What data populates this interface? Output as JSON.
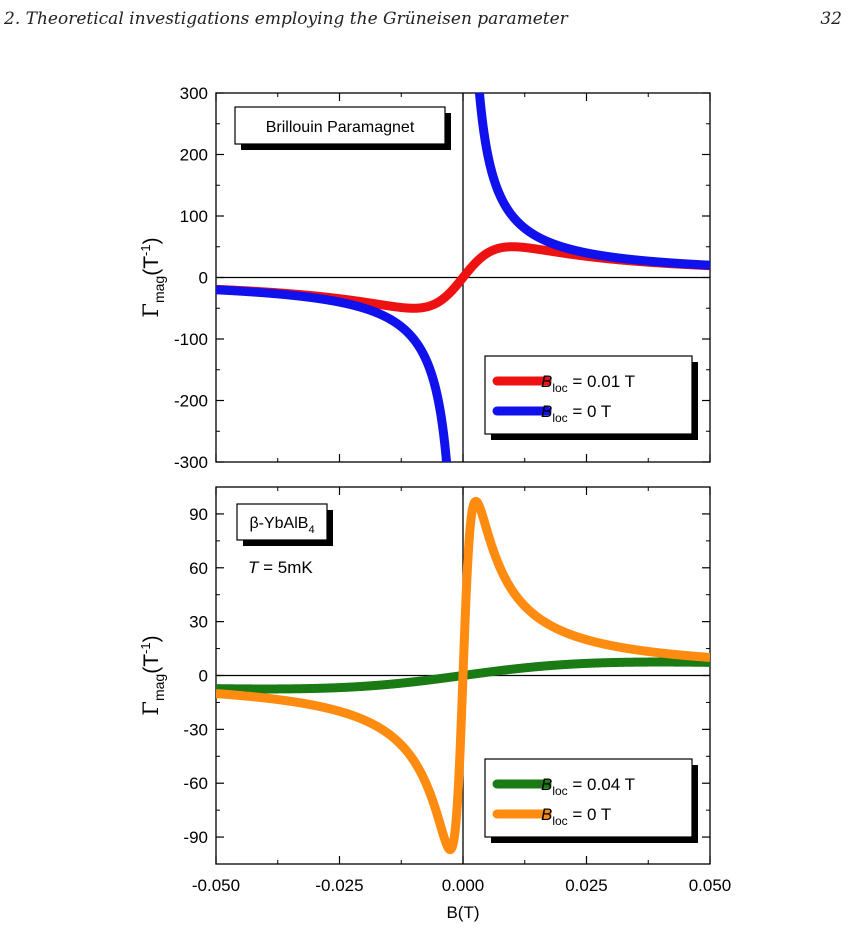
{
  "header": {
    "title": "2. Theoretical investigations employing the Grüneisen parameter",
    "page_number": "32"
  },
  "chart_data": [
    {
      "type": "line",
      "title": "Brillouin Paramagnet",
      "xlabel": "B(T)",
      "ylabel": {
        "symbol": "Γ",
        "sub": "mag",
        "unit": "(T",
        "sup": "-1",
        "close": ")"
      },
      "xlim": [
        -0.05,
        0.05
      ],
      "ylim": [
        -300,
        300
      ],
      "yticks": [
        -300,
        -200,
        -100,
        0,
        100,
        200,
        300
      ],
      "ytick_labels": [
        "-300",
        "-200",
        "-100",
        "0",
        "100",
        "200",
        "300"
      ],
      "legend_position": "bottom-right",
      "series": [
        {
          "name": "B_loc = 0.01 T",
          "label_main": "B",
          "label_sub": "loc",
          "label_tail": " = 0.01 T",
          "color": "#ee1111",
          "b_loc": 0.01
        },
        {
          "name": "B_loc = 0 T",
          "label_main": "B",
          "label_sub": "loc",
          "label_tail": " = 0 T",
          "color": "#1111ee",
          "b_loc": 0
        }
      ]
    },
    {
      "type": "line",
      "title": "β-YbAlB",
      "title_sub": "4",
      "annotation": {
        "italic": "T",
        "rest": " = 5mK"
      },
      "xlabel": "B(T)",
      "ylabel": {
        "symbol": "Γ",
        "sub": "mag",
        "unit": "(T",
        "sup": "-1",
        "close": ")"
      },
      "xlim": [
        -0.05,
        0.05
      ],
      "ylim": [
        -105,
        105
      ],
      "xticks": [
        -0.05,
        -0.025,
        0,
        0.025,
        0.05
      ],
      "xtick_labels": [
        "-0.050",
        "-0.025",
        "0.000",
        "0.025",
        "0.050"
      ],
      "yticks": [
        -90,
        -60,
        -30,
        0,
        30,
        60,
        90
      ],
      "ytick_labels": [
        "-90",
        "-60",
        "-30",
        "0",
        "30",
        "60",
        "90"
      ],
      "legend_position": "bottom-right",
      "series": [
        {
          "name": "B_loc = 0.04 T",
          "label_main": "B",
          "label_sub": "loc",
          "label_tail": " = 0.04 T",
          "color": "#1a7a14",
          "b_loc": 0.04,
          "peak": 7.5
        },
        {
          "name": "B_loc = 0 T",
          "label_main": "B",
          "label_sub": "loc",
          "label_tail": " = 0 T",
          "color": "#ff8c10",
          "b_loc": 0.0026,
          "peak": 97
        }
      ]
    }
  ],
  "colors": {
    "axis": "#000000",
    "background": "#ffffff"
  }
}
